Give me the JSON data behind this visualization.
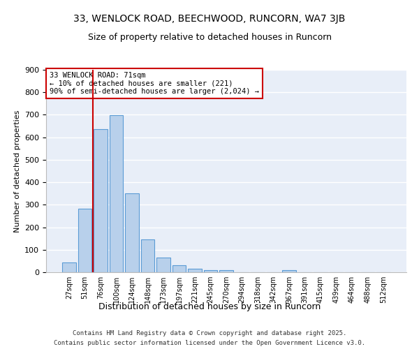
{
  "title": "33, WENLOCK ROAD, BEECHWOOD, RUNCORN, WA7 3JB",
  "subtitle": "Size of property relative to detached houses in Runcorn",
  "xlabel": "Distribution of detached houses by size in Runcorn",
  "ylabel": "Number of detached properties",
  "categories": [
    "27sqm",
    "51sqm",
    "76sqm",
    "100sqm",
    "124sqm",
    "148sqm",
    "173sqm",
    "197sqm",
    "221sqm",
    "245sqm",
    "270sqm",
    "294sqm",
    "318sqm",
    "342sqm",
    "367sqm",
    "391sqm",
    "415sqm",
    "439sqm",
    "464sqm",
    "488sqm",
    "512sqm"
  ],
  "values": [
    45,
    283,
    635,
    697,
    350,
    145,
    65,
    30,
    15,
    10,
    8,
    0,
    0,
    0,
    8,
    0,
    0,
    0,
    0,
    0,
    0
  ],
  "bar_color": "#b8d0eb",
  "bar_edge_color": "#5b9bd5",
  "background_color": "#e8eef8",
  "grid_color": "#ffffff",
  "annotation_box_text": "33 WENLOCK ROAD: 71sqm\n← 10% of detached houses are smaller (221)\n90% of semi-detached houses are larger (2,024) →",
  "annotation_box_color": "#cc0000",
  "vline_x_index": 1.5,
  "vline_color": "#cc0000",
  "ylim": [
    0,
    900
  ],
  "yticks": [
    0,
    100,
    200,
    300,
    400,
    500,
    600,
    700,
    800,
    900
  ],
  "footer_line1": "Contains HM Land Registry data © Crown copyright and database right 2025.",
  "footer_line2": "Contains public sector information licensed under the Open Government Licence v3.0."
}
